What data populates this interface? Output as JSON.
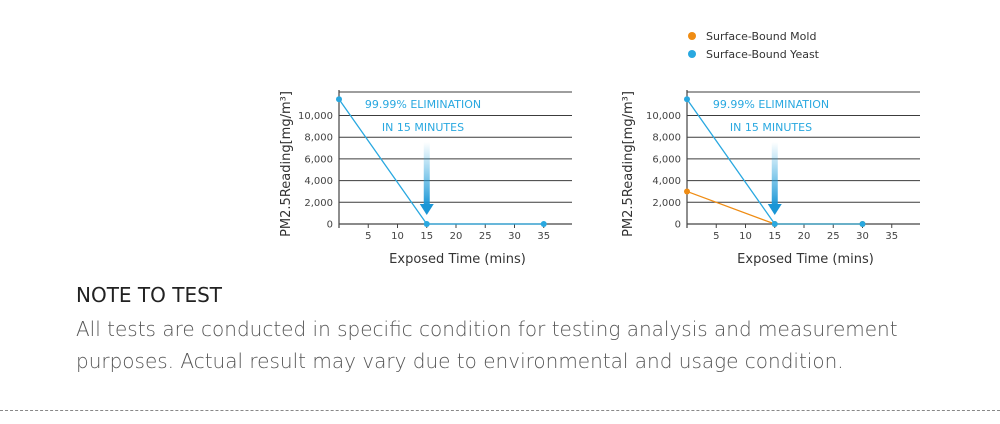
{
  "chart_data": [
    {
      "type": "line",
      "ylabel": "PM2.5Reading[mg/m³]",
      "xlabel": "Exposed Time (mins)",
      "x_ticks": [
        5,
        10,
        15,
        20,
        25,
        30,
        35
      ],
      "y_ticks": [
        "0",
        "2,000",
        "4,000",
        "6,000",
        "8,000",
        "10,000"
      ],
      "y_tick_values": [
        0,
        2000,
        4000,
        6000,
        8000,
        10000
      ],
      "xlim": [
        0,
        40
      ],
      "ylim": [
        0,
        12000
      ],
      "grid": true,
      "annotation": [
        "99.99% ELIMINATION",
        "IN 15 MINUTES"
      ],
      "arrow_at_x": 15,
      "series": [
        {
          "color": "#29a8e0",
          "x": [
            0,
            15,
            35
          ],
          "y": [
            11500,
            0,
            0
          ]
        }
      ]
    },
    {
      "type": "line",
      "ylabel": "PM2.5Reading[mg/m³]",
      "xlabel": "Exposed Time (mins)",
      "x_ticks": [
        5,
        10,
        15,
        20,
        25,
        30,
        35
      ],
      "y_ticks": [
        "0",
        "2,000",
        "4,000",
        "6,000",
        "8,000",
        "10,000"
      ],
      "y_tick_values": [
        0,
        2000,
        4000,
        6000,
        8000,
        10000
      ],
      "xlim": [
        0,
        40
      ],
      "ylim": [
        0,
        12000
      ],
      "grid": true,
      "annotation": [
        "99.99% ELIMINATION",
        "IN 15 MINUTES"
      ],
      "arrow_at_x": 15,
      "legend": "top",
      "series": [
        {
          "name": "Surface-Bound Mold",
          "color": "#ef8c13",
          "x": [
            0,
            15,
            30
          ],
          "y": [
            3000,
            0,
            0
          ]
        },
        {
          "name": "Surface-Bound Yeast",
          "color": "#29a8e0",
          "x": [
            0,
            15,
            30
          ],
          "y": [
            11500,
            0,
            0
          ]
        }
      ]
    }
  ],
  "note": {
    "title": "NOTE TO TEST",
    "body": "All tests are conducted in specific condition for testing analysis and measurement purposes. Actual result may vary due to environmental and usage condition."
  }
}
